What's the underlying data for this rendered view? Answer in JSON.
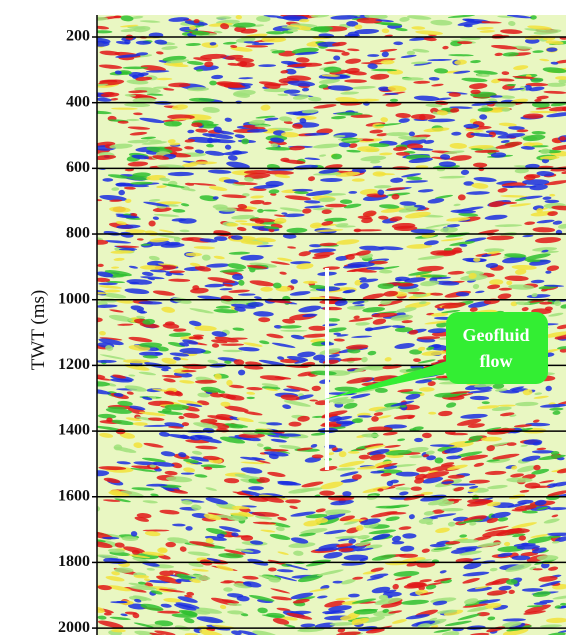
{
  "chart_data": {
    "type": "seismic-section",
    "ylabel": "TWT (ms)",
    "ylim": [
      133,
      2021
    ],
    "y_inverted": true,
    "yticks": [
      200,
      400,
      600,
      800,
      1000,
      1200,
      1400,
      1600,
      1800,
      2000
    ],
    "grid": true,
    "annotation": "Geofluid flow",
    "annotation_color": "#33ee33"
  }
}
